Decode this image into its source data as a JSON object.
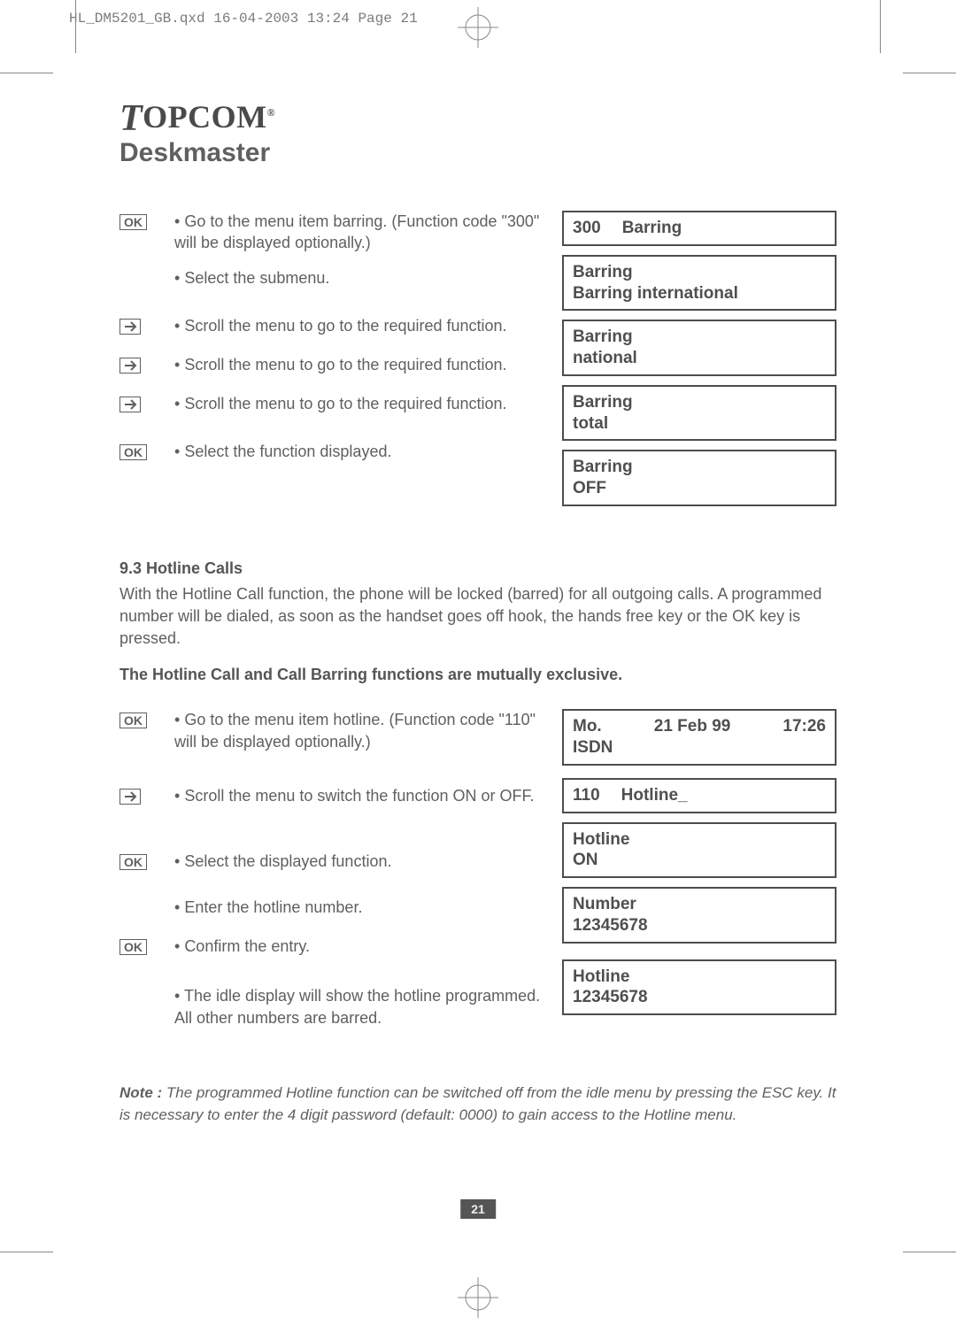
{
  "jobline": "HL_DM5201_GB.qxd  16-04-2003  13:24  Page 21",
  "logo": {
    "brand": "TOPCOM",
    "product": "Deskmaster"
  },
  "barring": {
    "steps": [
      {
        "icon": "ok",
        "text": "Go to the menu item barring. (Function code \"300\" will be displayed optionally.)"
      },
      {
        "icon": "",
        "text": "Select the submenu."
      },
      {
        "icon": "arrow",
        "text": "Scroll the menu to go to the required function."
      },
      {
        "icon": "arrow",
        "text": "Scroll the menu to go to the required function."
      },
      {
        "icon": "arrow",
        "text": "Scroll the menu to go to the required function."
      },
      {
        "icon": "ok",
        "text": "Select the function displayed."
      }
    ],
    "displays": [
      {
        "lines": [
          "300",
          "Barring"
        ],
        "layout": "row"
      },
      {
        "lines": [
          "Barring",
          "Barring international"
        ]
      },
      {
        "lines": [
          "Barring",
          "national"
        ]
      },
      {
        "lines": [
          "Barring",
          "total"
        ]
      },
      {
        "lines": [
          "Barring",
          "OFF"
        ]
      }
    ]
  },
  "hotline_heading": "9.3 Hotline Calls",
  "hotline_para": "With the Hotline Call function, the phone will be locked (barred) for all outgoing calls. A programmed number will be dialed, as soon as the handset goes off hook, the hands free key or the OK key is pressed.",
  "exclusive_line": "The Hotline Call and Call Barring functions are mutually exclusive.",
  "hotline": {
    "steps": [
      {
        "icon": "ok",
        "text": "Go to the menu item hotline. (Function code \"110\" will be displayed optionally.)"
      },
      {
        "icon": "arrow",
        "text": "Scroll the menu to switch the function ON or OFF."
      },
      {
        "icon": "ok",
        "text": "Select the displayed function."
      },
      {
        "icon": "",
        "text": "Enter the hotline number."
      },
      {
        "icon": "ok",
        "text": "Confirm the entry."
      },
      {
        "icon": "",
        "text": "The idle display will show the hotline programmed. All other numbers are barred."
      }
    ],
    "displays": [
      {
        "lines": [
          "Mo.",
          "21 Feb 99",
          "17:26"
        ],
        "line2": "ISDN",
        "layout": "spread"
      },
      {
        "lines": [
          "110",
          "Hotline_"
        ],
        "layout": "row"
      },
      {
        "lines": [
          "Hotline",
          "ON"
        ]
      },
      {
        "lines": [
          "Number",
          "12345678"
        ]
      },
      {
        "lines": [
          "Hotline",
          "12345678"
        ]
      }
    ]
  },
  "note_lead": "Note :",
  "note_text": " The programmed Hotline function can be switched off from the idle menu by pressing the ESC key. It is necessary to enter the 4 digit password (default: 0000) to gain access to the Hotline menu.",
  "page_number": "21",
  "colors": {
    "text": "#5f5f5f",
    "border": "#4d4d4d",
    "pagenum_bg": "#555555",
    "pagenum_fg": "#eeeeee"
  }
}
